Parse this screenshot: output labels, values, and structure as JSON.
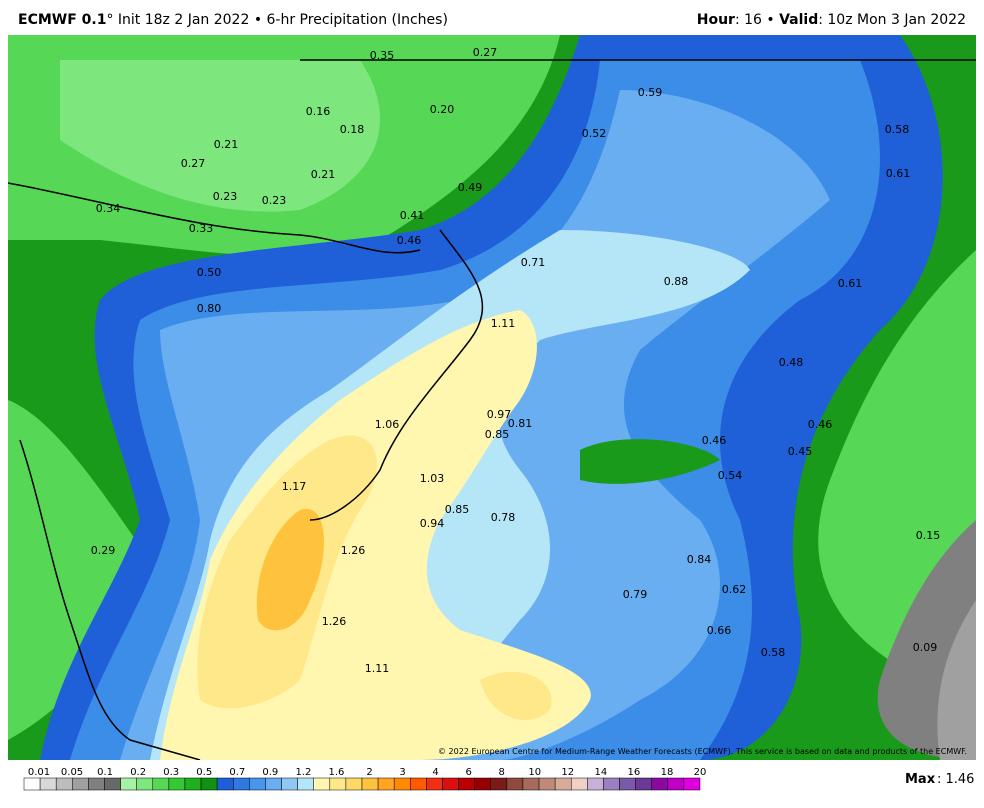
{
  "header": {
    "model": "ECMWF 0.1",
    "init": "° Init 18z 2 Jan 2022 • 6-hr Precipitation (Inches)",
    "hour_key": "Hour",
    "hour_value": ": 16 • ",
    "valid_key": "Valid",
    "valid_value": ": 10z Mon 3 Jan 2022"
  },
  "map": {
    "point_labels": [
      "0.35",
      "0.27",
      "0.59",
      "0.16",
      "0.20",
      "0.18",
      "0.52",
      "0.58",
      "0.21",
      "0.27",
      "0.21",
      "0.49",
      "0.61",
      "0.23",
      "0.23",
      "0.34",
      "0.41",
      "0.33",
      "0.46",
      "0.71",
      "0.50",
      "0.88",
      "0.61",
      "0.80",
      "1.11",
      "0.48",
      "0.97",
      "0.81",
      "1.06",
      "0.46",
      "0.85",
      "0.46",
      "0.45",
      "0.54",
      "1.03",
      "1.17",
      "0.85",
      "0.78",
      "0.94",
      "0.15",
      "1.26",
      "0.29",
      "0.84",
      "0.62",
      "0.79",
      "1.26",
      "0.66",
      "0.09",
      "0.58",
      "1.11"
    ],
    "credit": "© 2022 European Centre for Medium-Range Weather Forecasts (ECMWF). This service is based on data and products of the ECMWF."
  },
  "colorbar": {
    "labels": [
      "0.01",
      "0.05",
      "0.1",
      "0.2",
      "0.3",
      "0.5",
      "0.7",
      "0.9",
      "1.2",
      "1.6",
      "2",
      "3",
      "4",
      "6",
      "8",
      "10",
      "12",
      "14",
      "16",
      "18",
      "20"
    ],
    "colors": [
      "#ffffff",
      "#d9d9d9",
      "#bdbdbd",
      "#a0a0a0",
      "#808080",
      "#686868",
      "#a6f2a6",
      "#7de67d",
      "#56d856",
      "#35c835",
      "#1fb01f",
      "#138f13",
      "#1f5fd8",
      "#2f78e0",
      "#4a94ea",
      "#6aaef2",
      "#8fc8f7",
      "#b4e6f8",
      "#fff6b0",
      "#ffe88a",
      "#ffd966",
      "#ffc23d",
      "#ffa51f",
      "#ff8a00",
      "#ff5a00",
      "#f03010",
      "#d81010",
      "#b80000",
      "#980000",
      "#7a1a1a",
      "#8e4a3a",
      "#a86a5a",
      "#c08a7a",
      "#d8aa9a",
      "#eed0c8",
      "#c8b0d8",
      "#9a80c0",
      "#7a5aa8",
      "#6a3a98",
      "#8a0aa0",
      "#c000c8",
      "#e000e0"
    ],
    "max_key": "Max",
    "max_value": ": 1.46"
  }
}
